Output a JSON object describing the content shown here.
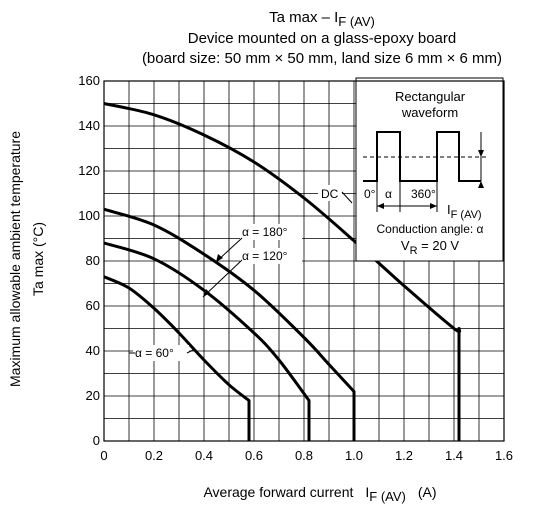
{
  "chart_data": {
    "type": "line",
    "title": "Ta max – I",
    "title_sub": "F (AV)",
    "subtitle1": "Device mounted on a glass-epoxy board",
    "subtitle2": "(board size: 50 mm × 50 mm, land size 6 mm × 6 mm)",
    "xlabel": "Average forward current",
    "xlabel_sym": "I",
    "xlabel_sub": "F (AV)",
    "xlabel_unit": "(A)",
    "ylabel1": "Maximum allowable ambient temperature",
    "ylabel2": "Ta max   (°C)",
    "xlim": [
      0,
      1.6
    ],
    "ylim": [
      0,
      160
    ],
    "x_ticks": [
      "0",
      "0.2",
      "0.4",
      "0.6",
      "0.8",
      "1.0",
      "1.2",
      "1.4",
      "1.6"
    ],
    "y_ticks": [
      "0",
      "20",
      "40",
      "60",
      "80",
      "100",
      "120",
      "140",
      "160"
    ],
    "grid": true,
    "series": [
      {
        "name": "DC",
        "points": [
          [
            0,
            150
          ],
          [
            0.2,
            145
          ],
          [
            0.4,
            136
          ],
          [
            0.6,
            124
          ],
          [
            0.8,
            108
          ],
          [
            1.0,
            89
          ],
          [
            1.2,
            69
          ],
          [
            1.4,
            50
          ],
          [
            1.42,
            50
          ],
          [
            1.42,
            0
          ]
        ]
      },
      {
        "name": "α = 180°",
        "points": [
          [
            0,
            103
          ],
          [
            0.2,
            96
          ],
          [
            0.4,
            83
          ],
          [
            0.6,
            67
          ],
          [
            0.8,
            46
          ],
          [
            0.9,
            34
          ],
          [
            1.0,
            22
          ],
          [
            1.0,
            0
          ]
        ]
      },
      {
        "name": "α = 120°",
        "points": [
          [
            0,
            88
          ],
          [
            0.2,
            81
          ],
          [
            0.4,
            67
          ],
          [
            0.6,
            48
          ],
          [
            0.7,
            36
          ],
          [
            0.82,
            18
          ],
          [
            0.82,
            0
          ]
        ]
      },
      {
        "name": "α = 60°",
        "points": [
          [
            0,
            73
          ],
          [
            0.1,
            68
          ],
          [
            0.2,
            59
          ],
          [
            0.3,
            48
          ],
          [
            0.4,
            36
          ],
          [
            0.5,
            25
          ],
          [
            0.58,
            18
          ],
          [
            0.58,
            0
          ]
        ]
      }
    ],
    "annotations": {
      "dc": "DC",
      "a180": "α = 180°",
      "a120": "α = 120°",
      "a60": "α = 60°"
    },
    "inset": {
      "title1": "Rectangular",
      "title2": "waveform",
      "zero": "0°",
      "alpha": "α",
      "full": "360°",
      "current_sym": "I",
      "current_sub": "F (AV)",
      "conduction": "Conduction angle: α",
      "vr_sym": "V",
      "vr_sub": "R",
      "vr_val": " = 20 V"
    }
  }
}
